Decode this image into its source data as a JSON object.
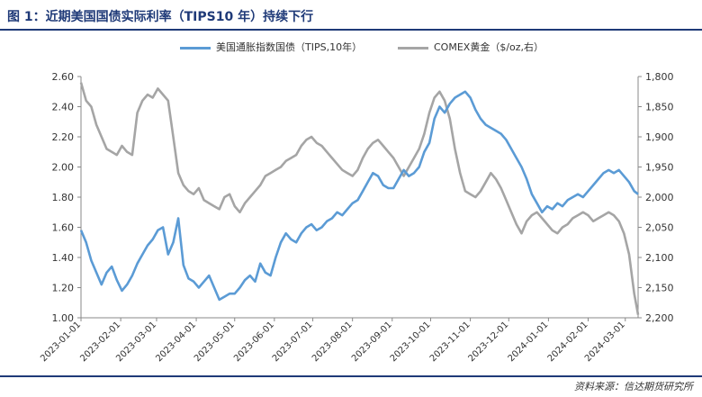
{
  "header": {
    "title": "图 1：近期美国国债实际利率（TIPS10 年）持续下行"
  },
  "footer": {
    "source": "资料来源：信达期货研究所"
  },
  "chart_data": {
    "type": "line",
    "title": "图 1：近期美国国债实际利率（TIPS10 年）持续下行",
    "xlabel": "",
    "ylabel": "",
    "legend_position": "top",
    "grid": false,
    "x_ticks": [
      "2023-01-01",
      "2023-02-01",
      "2023-03-01",
      "2023-04-01",
      "2023-05-01",
      "2023-06-01",
      "2023-07-01",
      "2023-08-01",
      "2023-09-01",
      "2023-10-01",
      "2023-11-01",
      "2023-12-01",
      "2024-01-01",
      "2024-02-01",
      "2024-03-01"
    ],
    "y_left": {
      "range": [
        1.0,
        2.6
      ],
      "ticks": [
        "1.00",
        "1.20",
        "1.40",
        "1.60",
        "1.80",
        "2.00",
        "2.20",
        "2.40",
        "2.60"
      ]
    },
    "y_right": {
      "range": [
        2200,
        1800
      ],
      "inverted": true,
      "ticks": [
        "1,800",
        "1,850",
        "1,900",
        "1,950",
        "2,000",
        "2,050",
        "2,100",
        "2,150",
        "2,200"
      ]
    },
    "series": [
      {
        "name": "美国通胀指数国债（TIPS,10年）",
        "axis": "left",
        "color": "#5b9bd5",
        "points": [
          [
            "2023-01-01",
            1.58
          ],
          [
            "2023-01-05",
            1.5
          ],
          [
            "2023-01-09",
            1.38
          ],
          [
            "2023-01-13",
            1.3
          ],
          [
            "2023-01-17",
            1.22
          ],
          [
            "2023-01-21",
            1.3
          ],
          [
            "2023-01-25",
            1.34
          ],
          [
            "2023-01-29",
            1.25
          ],
          [
            "2023-02-02",
            1.18
          ],
          [
            "2023-02-06",
            1.22
          ],
          [
            "2023-02-10",
            1.28
          ],
          [
            "2023-02-14",
            1.36
          ],
          [
            "2023-02-18",
            1.42
          ],
          [
            "2023-02-22",
            1.48
          ],
          [
            "2023-02-26",
            1.52
          ],
          [
            "2023-03-02",
            1.58
          ],
          [
            "2023-03-06",
            1.6
          ],
          [
            "2023-03-10",
            1.42
          ],
          [
            "2023-03-14",
            1.5
          ],
          [
            "2023-03-18",
            1.66
          ],
          [
            "2023-03-22",
            1.35
          ],
          [
            "2023-03-26",
            1.26
          ],
          [
            "2023-03-30",
            1.24
          ],
          [
            "2023-04-03",
            1.2
          ],
          [
            "2023-04-07",
            1.24
          ],
          [
            "2023-04-11",
            1.28
          ],
          [
            "2023-04-15",
            1.2
          ],
          [
            "2023-04-19",
            1.12
          ],
          [
            "2023-04-23",
            1.14
          ],
          [
            "2023-04-27",
            1.16
          ],
          [
            "2023-05-01",
            1.16
          ],
          [
            "2023-05-05",
            1.2
          ],
          [
            "2023-05-09",
            1.25
          ],
          [
            "2023-05-13",
            1.28
          ],
          [
            "2023-05-17",
            1.24
          ],
          [
            "2023-05-21",
            1.36
          ],
          [
            "2023-05-25",
            1.3
          ],
          [
            "2023-05-29",
            1.28
          ],
          [
            "2023-06-02",
            1.4
          ],
          [
            "2023-06-06",
            1.5
          ],
          [
            "2023-06-10",
            1.56
          ],
          [
            "2023-06-14",
            1.52
          ],
          [
            "2023-06-18",
            1.5
          ],
          [
            "2023-06-22",
            1.56
          ],
          [
            "2023-06-26",
            1.6
          ],
          [
            "2023-06-30",
            1.62
          ],
          [
            "2023-07-04",
            1.58
          ],
          [
            "2023-07-08",
            1.6
          ],
          [
            "2023-07-12",
            1.64
          ],
          [
            "2023-07-16",
            1.66
          ],
          [
            "2023-07-20",
            1.7
          ],
          [
            "2023-07-24",
            1.68
          ],
          [
            "2023-07-28",
            1.72
          ],
          [
            "2023-08-01",
            1.76
          ],
          [
            "2023-08-05",
            1.78
          ],
          [
            "2023-08-09",
            1.84
          ],
          [
            "2023-08-13",
            1.9
          ],
          [
            "2023-08-17",
            1.96
          ],
          [
            "2023-08-21",
            1.94
          ],
          [
            "2023-08-25",
            1.88
          ],
          [
            "2023-08-29",
            1.86
          ],
          [
            "2023-09-02",
            1.86
          ],
          [
            "2023-09-06",
            1.92
          ],
          [
            "2023-09-10",
            1.98
          ],
          [
            "2023-09-14",
            1.94
          ],
          [
            "2023-09-18",
            1.96
          ],
          [
            "2023-09-22",
            2.0
          ],
          [
            "2023-09-26",
            2.1
          ],
          [
            "2023-09-30",
            2.16
          ],
          [
            "2023-10-04",
            2.32
          ],
          [
            "2023-10-08",
            2.4
          ],
          [
            "2023-10-12",
            2.36
          ],
          [
            "2023-10-16",
            2.42
          ],
          [
            "2023-10-20",
            2.46
          ],
          [
            "2023-10-24",
            2.48
          ],
          [
            "2023-10-28",
            2.5
          ],
          [
            "2023-11-01",
            2.46
          ],
          [
            "2023-11-05",
            2.38
          ],
          [
            "2023-11-09",
            2.32
          ],
          [
            "2023-11-13",
            2.28
          ],
          [
            "2023-11-17",
            2.26
          ],
          [
            "2023-11-21",
            2.24
          ],
          [
            "2023-11-25",
            2.22
          ],
          [
            "2023-11-29",
            2.18
          ],
          [
            "2023-12-03",
            2.12
          ],
          [
            "2023-12-07",
            2.06
          ],
          [
            "2023-12-11",
            2.0
          ],
          [
            "2023-12-15",
            1.92
          ],
          [
            "2023-12-19",
            1.82
          ],
          [
            "2023-12-23",
            1.76
          ],
          [
            "2023-12-27",
            1.7
          ],
          [
            "2023-12-31",
            1.74
          ],
          [
            "2024-01-04",
            1.72
          ],
          [
            "2024-01-08",
            1.76
          ],
          [
            "2024-01-12",
            1.74
          ],
          [
            "2024-01-16",
            1.78
          ],
          [
            "2024-01-20",
            1.8
          ],
          [
            "2024-01-24",
            1.82
          ],
          [
            "2024-01-28",
            1.8
          ],
          [
            "2024-02-01",
            1.84
          ],
          [
            "2024-02-05",
            1.88
          ],
          [
            "2024-02-09",
            1.92
          ],
          [
            "2024-02-13",
            1.96
          ],
          [
            "2024-02-17",
            1.98
          ],
          [
            "2024-02-21",
            1.96
          ],
          [
            "2024-02-25",
            1.98
          ],
          [
            "2024-02-29",
            1.94
          ],
          [
            "2024-03-04",
            1.9
          ],
          [
            "2024-03-08",
            1.84
          ],
          [
            "2024-03-11",
            1.82
          ]
        ]
      },
      {
        "name": "COMEX黄金（$/oz,右）",
        "axis": "right",
        "color": "#a5a5a5",
        "points": [
          [
            "2023-01-01",
            1810
          ],
          [
            "2023-01-05",
            1840
          ],
          [
            "2023-01-09",
            1850
          ],
          [
            "2023-01-13",
            1880
          ],
          [
            "2023-01-17",
            1900
          ],
          [
            "2023-01-21",
            1920
          ],
          [
            "2023-01-25",
            1925
          ],
          [
            "2023-01-29",
            1930
          ],
          [
            "2023-02-02",
            1915
          ],
          [
            "2023-02-06",
            1925
          ],
          [
            "2023-02-10",
            1930
          ],
          [
            "2023-02-14",
            1860
          ],
          [
            "2023-02-18",
            1840
          ],
          [
            "2023-02-22",
            1830
          ],
          [
            "2023-02-26",
            1835
          ],
          [
            "2023-03-02",
            1820
          ],
          [
            "2023-03-06",
            1830
          ],
          [
            "2023-03-10",
            1840
          ],
          [
            "2023-03-14",
            1900
          ],
          [
            "2023-03-18",
            1960
          ],
          [
            "2023-03-22",
            1980
          ],
          [
            "2023-03-26",
            1990
          ],
          [
            "2023-03-30",
            1995
          ],
          [
            "2023-04-03",
            1985
          ],
          [
            "2023-04-07",
            2005
          ],
          [
            "2023-04-11",
            2010
          ],
          [
            "2023-04-15",
            2015
          ],
          [
            "2023-04-19",
            2020
          ],
          [
            "2023-04-23",
            2000
          ],
          [
            "2023-04-27",
            1995
          ],
          [
            "2023-05-01",
            2015
          ],
          [
            "2023-05-05",
            2025
          ],
          [
            "2023-05-09",
            2010
          ],
          [
            "2023-05-13",
            2000
          ],
          [
            "2023-05-17",
            1990
          ],
          [
            "2023-05-21",
            1980
          ],
          [
            "2023-05-25",
            1965
          ],
          [
            "2023-05-29",
            1960
          ],
          [
            "2023-06-02",
            1955
          ],
          [
            "2023-06-06",
            1950
          ],
          [
            "2023-06-10",
            1940
          ],
          [
            "2023-06-14",
            1935
          ],
          [
            "2023-06-18",
            1930
          ],
          [
            "2023-06-22",
            1915
          ],
          [
            "2023-06-26",
            1905
          ],
          [
            "2023-06-30",
            1900
          ],
          [
            "2023-07-04",
            1910
          ],
          [
            "2023-07-08",
            1915
          ],
          [
            "2023-07-12",
            1925
          ],
          [
            "2023-07-16",
            1935
          ],
          [
            "2023-07-20",
            1945
          ],
          [
            "2023-07-24",
            1955
          ],
          [
            "2023-07-28",
            1960
          ],
          [
            "2023-08-01",
            1965
          ],
          [
            "2023-08-05",
            1955
          ],
          [
            "2023-08-09",
            1935
          ],
          [
            "2023-08-13",
            1920
          ],
          [
            "2023-08-17",
            1910
          ],
          [
            "2023-08-21",
            1905
          ],
          [
            "2023-08-25",
            1915
          ],
          [
            "2023-08-29",
            1925
          ],
          [
            "2023-09-02",
            1935
          ],
          [
            "2023-09-06",
            1950
          ],
          [
            "2023-09-10",
            1965
          ],
          [
            "2023-09-14",
            1950
          ],
          [
            "2023-09-18",
            1935
          ],
          [
            "2023-09-22",
            1920
          ],
          [
            "2023-09-26",
            1895
          ],
          [
            "2023-09-30",
            1860
          ],
          [
            "2023-10-04",
            1835
          ],
          [
            "2023-10-08",
            1825
          ],
          [
            "2023-10-12",
            1840
          ],
          [
            "2023-10-16",
            1870
          ],
          [
            "2023-10-20",
            1920
          ],
          [
            "2023-10-24",
            1960
          ],
          [
            "2023-10-28",
            1990
          ],
          [
            "2023-11-01",
            1995
          ],
          [
            "2023-11-05",
            2000
          ],
          [
            "2023-11-09",
            1990
          ],
          [
            "2023-11-13",
            1975
          ],
          [
            "2023-11-17",
            1960
          ],
          [
            "2023-11-21",
            1970
          ],
          [
            "2023-11-25",
            1985
          ],
          [
            "2023-11-29",
            2005
          ],
          [
            "2023-12-03",
            2025
          ],
          [
            "2023-12-07",
            2045
          ],
          [
            "2023-12-11",
            2060
          ],
          [
            "2023-12-15",
            2040
          ],
          [
            "2023-12-19",
            2030
          ],
          [
            "2023-12-23",
            2025
          ],
          [
            "2023-12-27",
            2035
          ],
          [
            "2023-12-31",
            2045
          ],
          [
            "2024-01-04",
            2055
          ],
          [
            "2024-01-08",
            2060
          ],
          [
            "2024-01-12",
            2050
          ],
          [
            "2024-01-16",
            2045
          ],
          [
            "2024-01-20",
            2035
          ],
          [
            "2024-01-24",
            2030
          ],
          [
            "2024-01-28",
            2025
          ],
          [
            "2024-02-01",
            2030
          ],
          [
            "2024-02-05",
            2040
          ],
          [
            "2024-02-09",
            2035
          ],
          [
            "2024-02-13",
            2030
          ],
          [
            "2024-02-17",
            2025
          ],
          [
            "2024-02-21",
            2030
          ],
          [
            "2024-02-25",
            2040
          ],
          [
            "2024-02-29",
            2060
          ],
          [
            "2024-03-04",
            2095
          ],
          [
            "2024-03-08",
            2160
          ],
          [
            "2024-03-11",
            2195
          ]
        ]
      }
    ]
  }
}
